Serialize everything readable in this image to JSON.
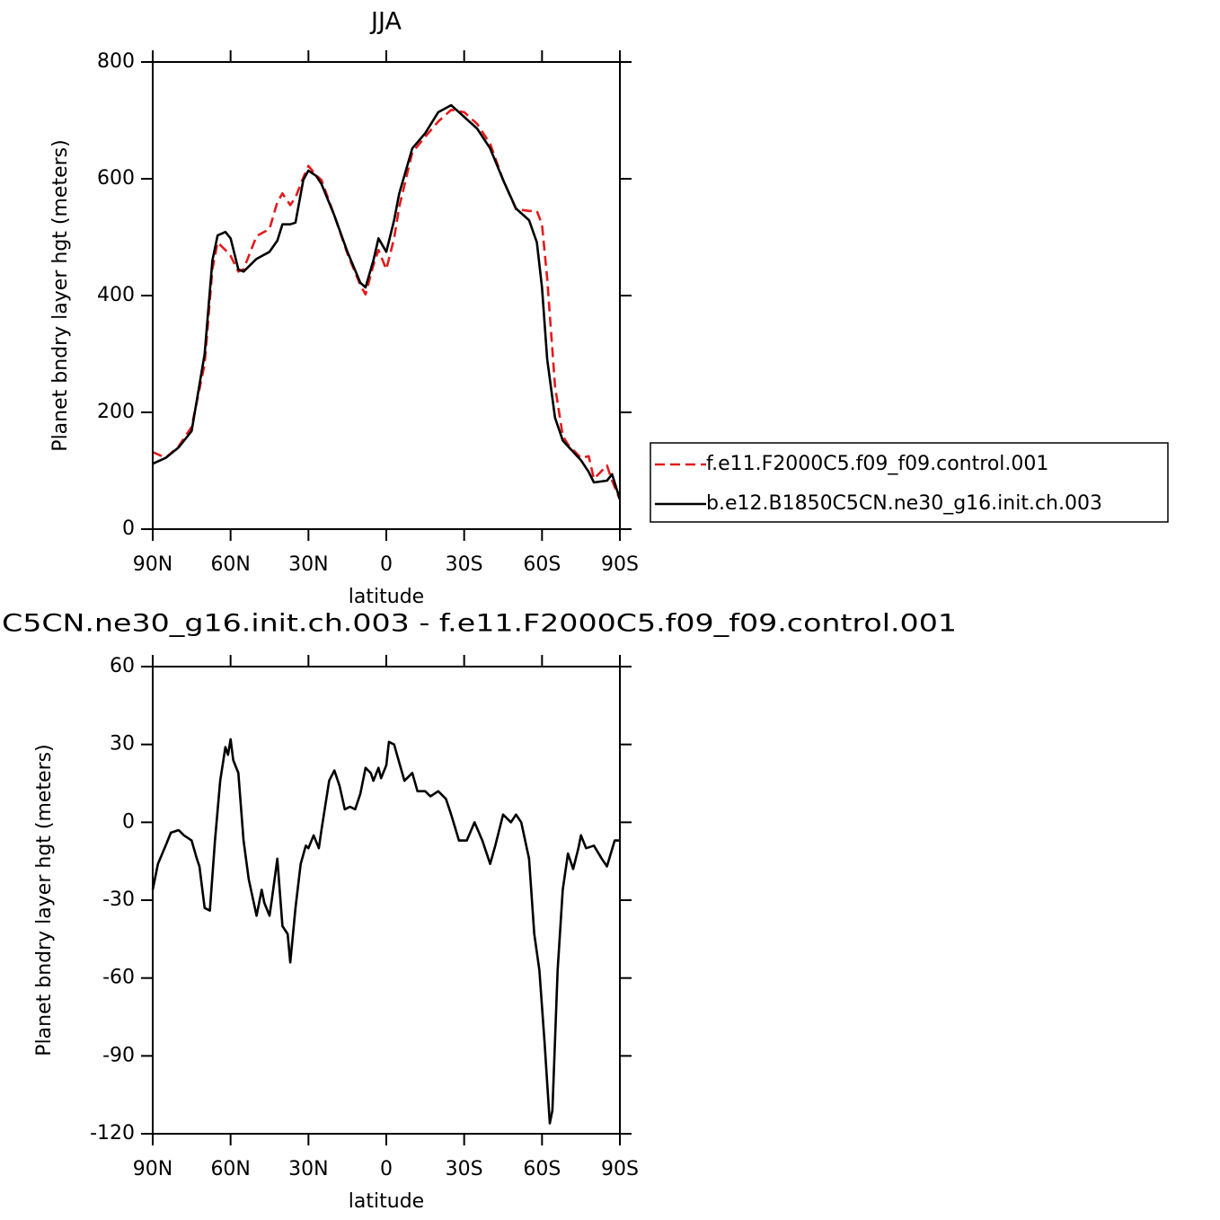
{
  "chart_data": [
    {
      "type": "line",
      "title": "JJA",
      "x_label": "latitude",
      "y_label": "Planet bndry layer hgt (meters)",
      "x": [
        90,
        85,
        80,
        75,
        70,
        67,
        65,
        62,
        60,
        57,
        55,
        50,
        45,
        42,
        40,
        37,
        35,
        32,
        30,
        27,
        25,
        20,
        15,
        10,
        8,
        5,
        3,
        0,
        -3,
        -5,
        -10,
        -15,
        -20,
        -25,
        -30,
        -35,
        -40,
        -45,
        -50,
        -55,
        -58,
        -60,
        -62,
        -65,
        -68,
        -70,
        -75,
        -78,
        -80,
        -85,
        -87,
        -90
      ],
      "xlim": [
        90,
        -90
      ],
      "xticks": [
        {
          "value": 90,
          "label": "90N"
        },
        {
          "value": 60,
          "label": "60N"
        },
        {
          "value": 30,
          "label": "30N"
        },
        0,
        {
          "value": -30,
          "label": "30S"
        },
        {
          "value": -60,
          "label": "60S"
        },
        {
          "value": -90,
          "label": "90S"
        }
      ],
      "ylim": [
        0,
        800
      ],
      "yticks": [
        0,
        200,
        400,
        600,
        800
      ],
      "legend": "right",
      "series": [
        {
          "name": "f.e11.F2000C5.f09_f09.control.001",
          "color": "#e41a1c",
          "style": "dashed",
          "values": [
            132,
            122,
            142,
            175,
            283,
            445,
            491,
            478,
            468,
            441,
            445,
            502,
            514,
            560,
            575,
            555,
            568,
            602,
            622,
            606,
            598,
            537,
            472,
            418,
            402,
            452,
            478,
            445,
            498,
            552,
            645,
            672,
            698,
            718,
            714,
            694,
            660,
            598,
            548,
            545,
            545,
            522,
            429,
            245,
            160,
            145,
            122,
            125,
            86,
            109,
            83,
            51
          ]
        },
        {
          "name": "b.e12.B1850C5CN.ne30_g16.init.ch.003",
          "color": "#000000",
          "style": "solid",
          "values": [
            112,
            122,
            140,
            168,
            300,
            460,
            503,
            509,
            498,
            445,
            441,
            463,
            475,
            494,
            522,
            522,
            525,
            598,
            614,
            605,
            591,
            537,
            475,
            422,
            414,
            460,
            498,
            475,
            529,
            575,
            652,
            678,
            714,
            726,
            706,
            686,
            652,
            598,
            549,
            529,
            491,
            414,
            291,
            191,
            152,
            142,
            118,
            98,
            80,
            83,
            94,
            51
          ]
        }
      ]
    },
    {
      "type": "line",
      "title": "C5CN.ne30_g16.init.ch.003 - f.e11.F2000C5.f09_f09.control.001",
      "x_label": "latitude",
      "y_label": "Planet bndry layer hgt (meters)",
      "x": [
        90,
        88,
        85,
        83,
        80,
        78,
        75,
        73,
        72,
        70,
        68,
        66,
        64,
        62,
        61,
        60,
        59,
        57,
        55,
        53,
        50,
        48,
        47,
        45,
        44,
        42,
        40,
        38,
        37,
        35,
        33,
        31,
        30,
        28,
        26,
        25,
        22,
        20,
        18,
        16,
        14,
        12,
        10,
        8,
        6,
        5,
        3,
        2,
        0,
        -1,
        -3,
        -5,
        -7,
        -10,
        -12,
        -15,
        -17,
        -20,
        -23,
        -25,
        -28,
        -31,
        -34,
        -37,
        -40,
        -42,
        -45,
        -48,
        -50,
        -52,
        -55,
        -57,
        -59,
        -61,
        -63,
        -64,
        -66,
        -68,
        -70,
        -72,
        -74,
        -75,
        -77,
        -80,
        -83,
        -85,
        -88,
        -90
      ],
      "values": [
        -26,
        -16,
        -9,
        -4,
        -3,
        -5,
        -7,
        -14,
        -17,
        -33,
        -34,
        -7,
        16,
        29,
        26,
        32,
        24,
        19,
        -7,
        -22,
        -36,
        -26,
        -31,
        -36,
        -29,
        -14,
        -40,
        -43,
        -54,
        -33,
        -16,
        -9,
        -10,
        -5,
        -10,
        -3,
        16,
        20,
        14,
        5,
        6,
        5,
        11,
        21,
        19,
        16,
        21,
        17,
        22,
        31,
        30,
        23,
        16,
        19,
        12,
        12,
        10,
        12,
        9,
        3,
        -7,
        -7,
        0,
        -7,
        -16,
        -9,
        3,
        0,
        3,
        0,
        -14,
        -43,
        -57,
        -85,
        -116,
        -111,
        -57,
        -26,
        -12,
        -18,
        -10,
        -5,
        -10,
        -9,
        -14,
        -17,
        -7,
        -7
      ],
      "color": "#000000",
      "xlim": [
        90,
        -90
      ],
      "xticks": [
        {
          "value": 90,
          "label": "90N"
        },
        {
          "value": 60,
          "label": "60N"
        },
        {
          "value": 30,
          "label": "30N"
        },
        0,
        {
          "value": -30,
          "label": "30S"
        },
        {
          "value": -60,
          "label": "60S"
        },
        {
          "value": -90,
          "label": "90S"
        }
      ],
      "ylim": [
        -120,
        60
      ],
      "yticks": [
        -120,
        -90,
        -60,
        -30,
        0,
        30,
        60
      ]
    }
  ]
}
